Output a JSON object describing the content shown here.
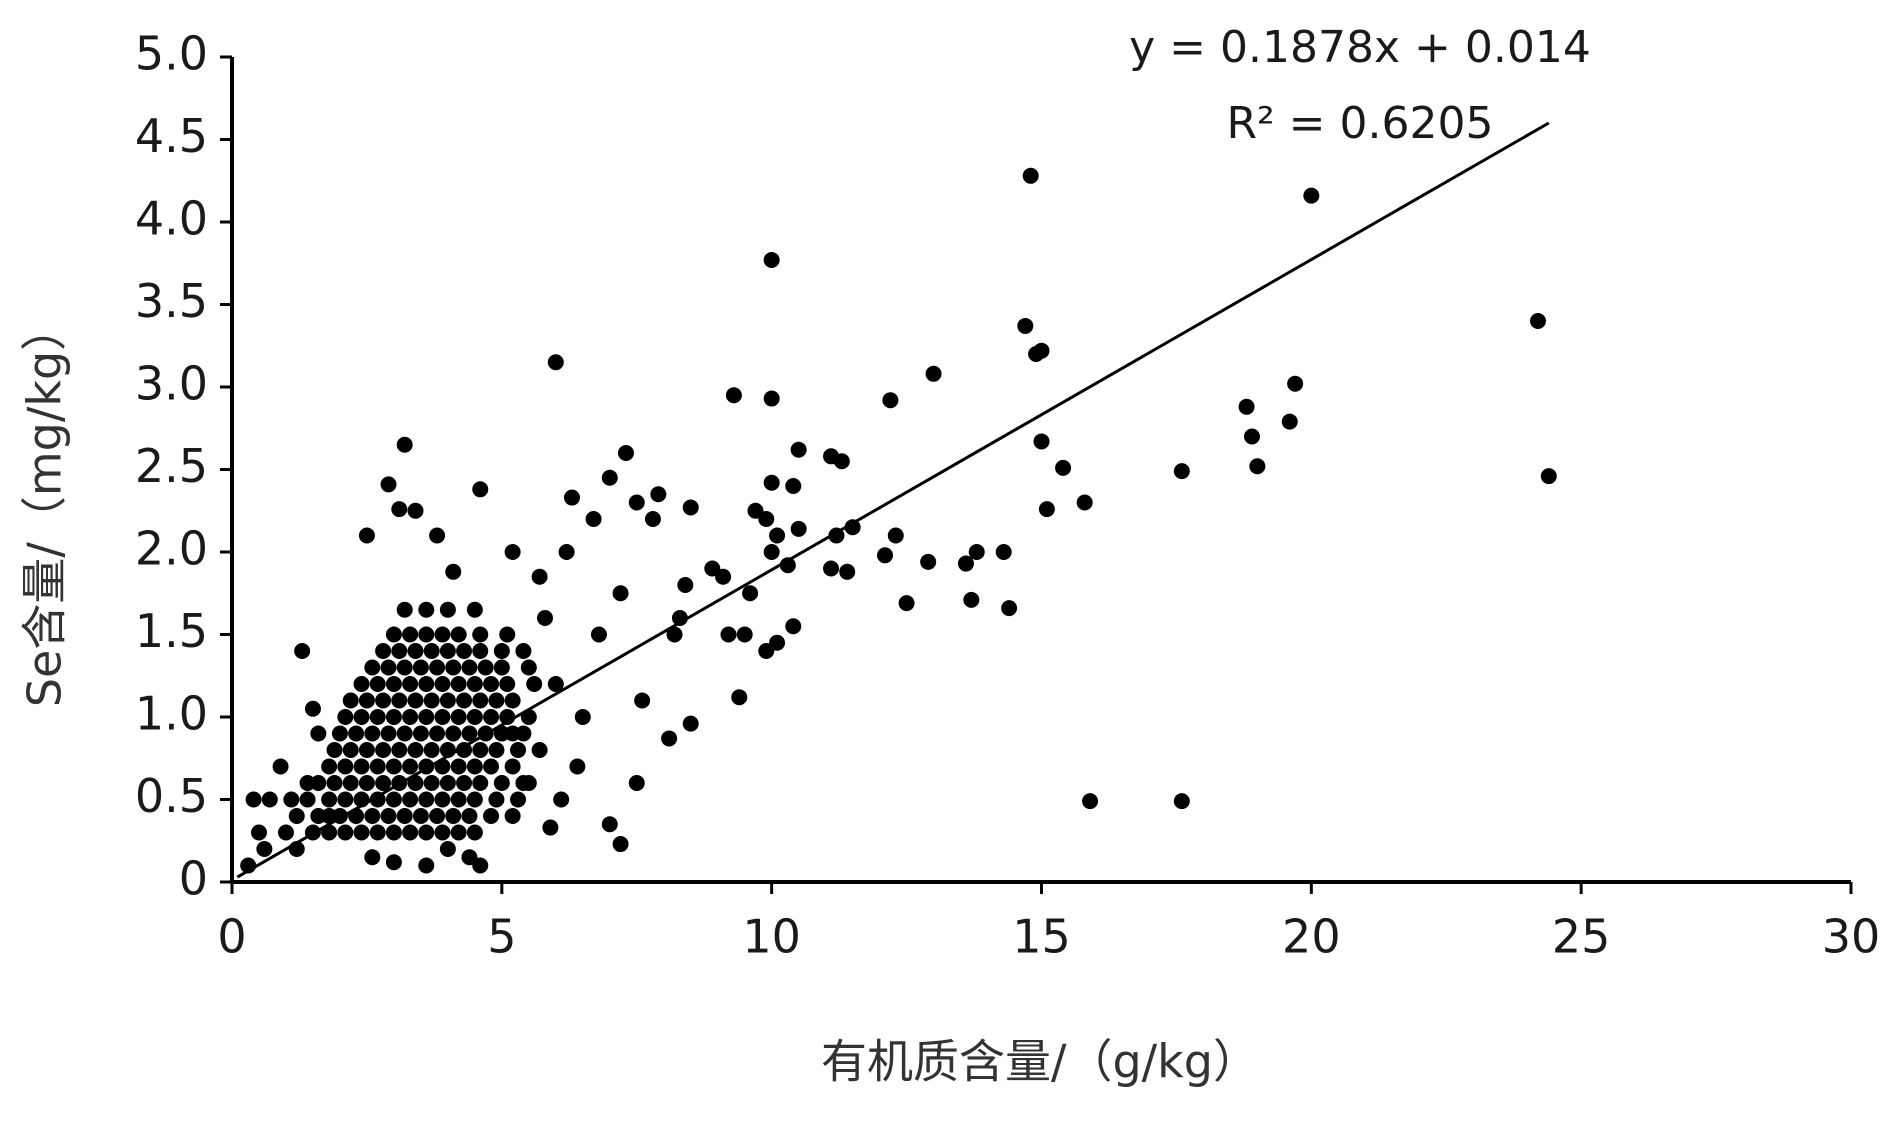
{
  "chart_data": {
    "type": "scatter",
    "xlabel": "有机质含量/（g/kg）",
    "ylabel": "Se含量/（mg/kg）",
    "annotations": [
      "y = 0.1878x + 0.014",
      "R² = 0.6205"
    ],
    "color": "#000000",
    "xlim": [
      0,
      30
    ],
    "xticks": [
      0,
      5,
      10,
      15,
      20,
      25,
      30
    ],
    "ylim": [
      0,
      5
    ],
    "yticks": [
      0,
      0.5,
      {
        "value": 1,
        "label": "1.0"
      },
      1.5,
      {
        "value": 2,
        "label": "2.0"
      },
      2.5,
      {
        "value": 3,
        "label": "3.0"
      },
      3.5,
      {
        "value": 4,
        "label": "4.0"
      },
      4.5,
      {
        "value": 5,
        "label": "5.0"
      }
    ],
    "trendline": {
      "x": [
        0.1,
        24.4
      ],
      "y": [
        0.03,
        4.6
      ]
    },
    "x": [
      1.5,
      1.8,
      2.1,
      2.4,
      2.7,
      3.0,
      3.3,
      3.6,
      3.9,
      4.2,
      4.5,
      1.2,
      1.6,
      2.0,
      2.3,
      2.6,
      2.9,
      3.2,
      3.5,
      3.8,
      4.1,
      4.4,
      4.8,
      5.2,
      1.4,
      1.8,
      2.1,
      2.4,
      2.7,
      3.0,
      3.3,
      3.6,
      3.9,
      4.2,
      4.5,
      4.9,
      5.3,
      1.6,
      1.9,
      2.2,
      2.5,
      2.8,
      3.1,
      3.4,
      3.7,
      4.0,
      4.3,
      4.6,
      5.0,
      5.4,
      1.8,
      2.1,
      2.4,
      2.7,
      3.0,
      3.3,
      3.6,
      3.9,
      4.2,
      4.5,
      4.8,
      5.2,
      1.9,
      2.2,
      2.5,
      2.8,
      3.1,
      3.4,
      3.7,
      4.0,
      4.3,
      4.6,
      4.9,
      5.3,
      5.7,
      2.0,
      2.3,
      2.6,
      2.9,
      3.2,
      3.5,
      3.8,
      4.1,
      4.4,
      4.7,
      5.0,
      5.4,
      2.1,
      2.4,
      2.7,
      3.0,
      3.3,
      3.6,
      3.9,
      4.2,
      4.5,
      4.8,
      5.1,
      5.5,
      2.2,
      2.5,
      2.8,
      3.1,
      3.4,
      3.7,
      4.0,
      4.3,
      4.6,
      4.9,
      5.2,
      2.4,
      2.7,
      3.0,
      3.3,
      3.6,
      3.9,
      4.2,
      4.5,
      4.8,
      5.1,
      5.6,
      2.6,
      2.9,
      3.2,
      3.5,
      3.8,
      4.1,
      4.4,
      4.7,
      5.0,
      2.8,
      3.1,
      3.4,
      3.7,
      4.0,
      4.3,
      4.6,
      5.0,
      5.4,
      3.0,
      3.3,
      3.6,
      3.9,
      4.2,
      4.6,
      5.1,
      3.2,
      3.6,
      4.0,
      4.5,
      14.8,
      20,
      10,
      24.2,
      14.7,
      14.9,
      15,
      13,
      6,
      9.3,
      10,
      12.2,
      18.8,
      19.7,
      19.6,
      18.9,
      19,
      17.6,
      24.4,
      15,
      15.4,
      15.8,
      15.1,
      14.3,
      13.6,
      13.8,
      12.9,
      12.3,
      12.1,
      12.5,
      13.7,
      14.4,
      15.9,
      17.6,
      11.3,
      11.1,
      10.5,
      10.4,
      10,
      11.5,
      11.2,
      11.4,
      11.1,
      10.5,
      10.3,
      9.9,
      10.1,
      10,
      9.7,
      10.1,
      10.4,
      9.9,
      9.5,
      9.6,
      9.4,
      9.2,
      8.9,
      9.1,
      8.5,
      8.4,
      8.3,
      8.5,
      8.1,
      8.2,
      7.9,
      7.8,
      7.5,
      7.3,
      7,
      6.3,
      6.7,
      7.2,
      7,
      7.5,
      7.6,
      7.2,
      6.8,
      6.5,
      6.4,
      6.1,
      5.9,
      3.2,
      2.9,
      3.1,
      3.4,
      2.5,
      4.6,
      3.8,
      4.1,
      5.2,
      5.7,
      6.2,
      5.5,
      5.8,
      6,
      5.2,
      5.5,
      4.4,
      4.6,
      4,
      3.6,
      3,
      2.6,
      0.3,
      0.5,
      0.6,
      0.4,
      0.7,
      0.9,
      1,
      1.1,
      1.3,
      1.5,
      1.6,
      1.2,
      1.4,
      1.8
    ],
    "values": [
      0.3,
      0.3,
      0.3,
      0.3,
      0.3,
      0.3,
      0.3,
      0.3,
      0.3,
      0.3,
      0.3,
      0.4,
      0.4,
      0.4,
      0.4,
      0.4,
      0.4,
      0.4,
      0.4,
      0.4,
      0.4,
      0.4,
      0.4,
      0.4,
      0.5,
      0.5,
      0.5,
      0.5,
      0.5,
      0.5,
      0.5,
      0.5,
      0.5,
      0.5,
      0.5,
      0.5,
      0.5,
      0.6,
      0.6,
      0.6,
      0.6,
      0.6,
      0.6,
      0.6,
      0.6,
      0.6,
      0.6,
      0.6,
      0.6,
      0.6,
      0.7,
      0.7,
      0.7,
      0.7,
      0.7,
      0.7,
      0.7,
      0.7,
      0.7,
      0.7,
      0.7,
      0.7,
      0.8,
      0.8,
      0.8,
      0.8,
      0.8,
      0.8,
      0.8,
      0.8,
      0.8,
      0.8,
      0.8,
      0.8,
      0.8,
      0.9,
      0.9,
      0.9,
      0.9,
      0.9,
      0.9,
      0.9,
      0.9,
      0.9,
      0.9,
      0.9,
      0.9,
      1.0,
      1.0,
      1.0,
      1.0,
      1.0,
      1.0,
      1.0,
      1.0,
      1.0,
      1.0,
      1.0,
      1.0,
      1.1,
      1.1,
      1.1,
      1.1,
      1.1,
      1.1,
      1.1,
      1.1,
      1.1,
      1.1,
      1.1,
      1.2,
      1.2,
      1.2,
      1.2,
      1.2,
      1.2,
      1.2,
      1.2,
      1.2,
      1.2,
      1.2,
      1.3,
      1.3,
      1.3,
      1.3,
      1.3,
      1.3,
      1.3,
      1.3,
      1.3,
      1.4,
      1.4,
      1.4,
      1.4,
      1.4,
      1.4,
      1.4,
      1.4,
      1.4,
      1.5,
      1.5,
      1.5,
      1.5,
      1.5,
      1.5,
      1.5,
      1.65,
      1.65,
      1.65,
      1.65,
      4.28,
      4.16,
      3.77,
      3.4,
      3.37,
      3.2,
      3.22,
      3.08,
      3.15,
      2.95,
      2.93,
      2.92,
      2.88,
      3.02,
      2.79,
      2.7,
      2.52,
      2.49,
      2.46,
      2.67,
      2.51,
      2.3,
      2.26,
      2,
      1.93,
      2,
      1.94,
      2.1,
      1.98,
      1.69,
      1.71,
      1.66,
      0.49,
      0.49,
      2.55,
      2.58,
      2.62,
      2.4,
      2.42,
      2.15,
      2.1,
      1.88,
      1.9,
      2.14,
      1.92,
      2.2,
      2.1,
      2,
      2.25,
      1.45,
      1.55,
      1.4,
      1.5,
      1.75,
      1.12,
      1.5,
      1.9,
      1.85,
      2.27,
      1.8,
      1.6,
      0.96,
      0.87,
      1.5,
      2.35,
      2.2,
      2.3,
      2.6,
      2.45,
      2.33,
      2.2,
      0.23,
      0.35,
      0.6,
      1.1,
      1.75,
      1.5,
      1,
      0.7,
      0.5,
      0.33,
      2.65,
      2.41,
      2.26,
      2.25,
      2.1,
      2.38,
      2.1,
      1.88,
      2,
      1.85,
      2,
      1.3,
      1.6,
      1.2,
      0.9,
      0.6,
      0.15,
      0.1,
      0.2,
      0.1,
      0.12,
      0.15,
      0.1,
      0.3,
      0.2,
      0.5,
      0.5,
      0.7,
      0.3,
      0.5,
      1.4,
      1.05,
      0.9,
      0.2,
      0.6,
      0.4
    ]
  }
}
